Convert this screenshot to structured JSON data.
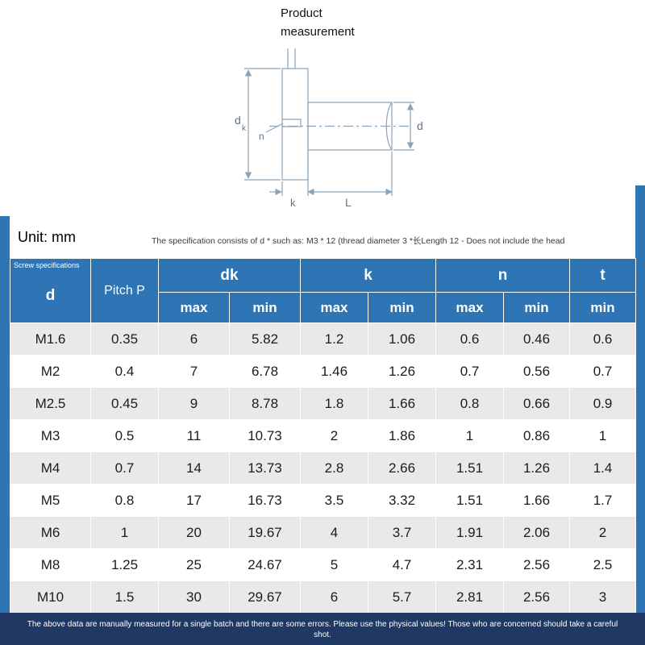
{
  "page": {
    "title_line1": "Product",
    "title_line2": "measurement",
    "unit_label": "Unit: mm",
    "spec_note": "The specification consists of d * such as: M3 * 12 (thread diameter 3 *长Length 12 - Does not include the head",
    "footer_note": "The above data are manually measured for a single batch and there are some errors. Please use the physical values! Those who are concerned should take a careful shot."
  },
  "colors": {
    "header_blue": "#2e75b6",
    "stripe_gray": "#e9e9e9",
    "footer_navy": "#1f3864",
    "diagram_line": "#8da4b8"
  },
  "diagram": {
    "labels": {
      "dk_main": "d",
      "dk_sub": "k",
      "n": "n",
      "d": "d",
      "k": "k",
      "L": "L"
    }
  },
  "table": {
    "header": {
      "corner_small": "Screw specifications",
      "corner_main": "d",
      "pitch": "Pitch P",
      "groups": [
        {
          "label": "dk"
        },
        {
          "label": "k"
        },
        {
          "label": "n"
        },
        {
          "label": "t"
        }
      ],
      "sub": [
        "max",
        "min",
        "max",
        "min",
        "max",
        "min",
        "min"
      ]
    },
    "rows": [
      [
        "M1.6",
        "0.35",
        "6",
        "5.82",
        "1.2",
        "1.06",
        "0.6",
        "0.46",
        "0.6"
      ],
      [
        "M2",
        "0.4",
        "7",
        "6.78",
        "1.46",
        "1.26",
        "0.7",
        "0.56",
        "0.7"
      ],
      [
        "M2.5",
        "0.45",
        "9",
        "8.78",
        "1.8",
        "1.66",
        "0.8",
        "0.66",
        "0.9"
      ],
      [
        "M3",
        "0.5",
        "11",
        "10.73",
        "2",
        "1.86",
        "1",
        "0.86",
        "1"
      ],
      [
        "M4",
        "0.7",
        "14",
        "13.73",
        "2.8",
        "2.66",
        "1.51",
        "1.26",
        "1.4"
      ],
      [
        "M5",
        "0.8",
        "17",
        "16.73",
        "3.5",
        "3.32",
        "1.51",
        "1.66",
        "1.7"
      ],
      [
        "M6",
        "1",
        "20",
        "19.67",
        "4",
        "3.7",
        "1.91",
        "2.06",
        "2"
      ],
      [
        "M8",
        "1.25",
        "25",
        "24.67",
        "5",
        "4.7",
        "2.31",
        "2.56",
        "2.5"
      ],
      [
        "M10",
        "1.5",
        "30",
        "29.67",
        "6",
        "5.7",
        "2.81",
        "2.56",
        "3"
      ]
    ]
  }
}
